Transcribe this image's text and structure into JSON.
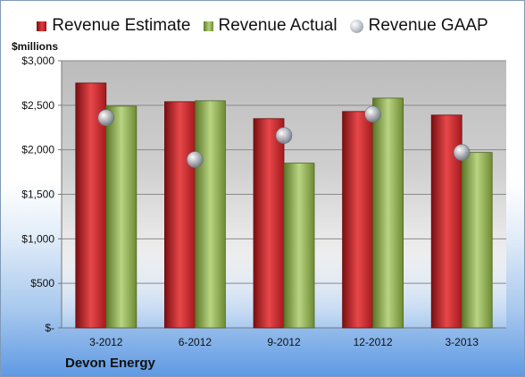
{
  "chart_data": {
    "type": "bar",
    "categories": [
      "3-2012",
      "6-2012",
      "9-2012",
      "12-2012",
      "3-2013"
    ],
    "series": [
      {
        "name": "Revenue Estimate",
        "kind": "bar",
        "color": "#c8262a",
        "values": [
          2750,
          2540,
          2350,
          2430,
          2390
        ]
      },
      {
        "name": "Revenue Actual",
        "kind": "bar",
        "color": "#8fb04e",
        "values": [
          2490,
          2550,
          1850,
          2580,
          1970
        ]
      },
      {
        "name": "Revenue GAAP",
        "kind": "marker",
        "color": "#b9bec6",
        "values": [
          2360,
          1890,
          2160,
          2400,
          1970
        ]
      }
    ],
    "ylabel": "$millions",
    "ylim": [
      0,
      3000
    ],
    "yticks": [
      0,
      500,
      1000,
      1500,
      2000,
      2500,
      3000
    ],
    "ytick_labels": [
      "$-",
      "$500",
      "$1,000",
      "$1,500",
      "$2,000",
      "$2,500",
      "$3,000"
    ],
    "grid": true,
    "legend_position": "top"
  },
  "company_name": "Devon Energy"
}
